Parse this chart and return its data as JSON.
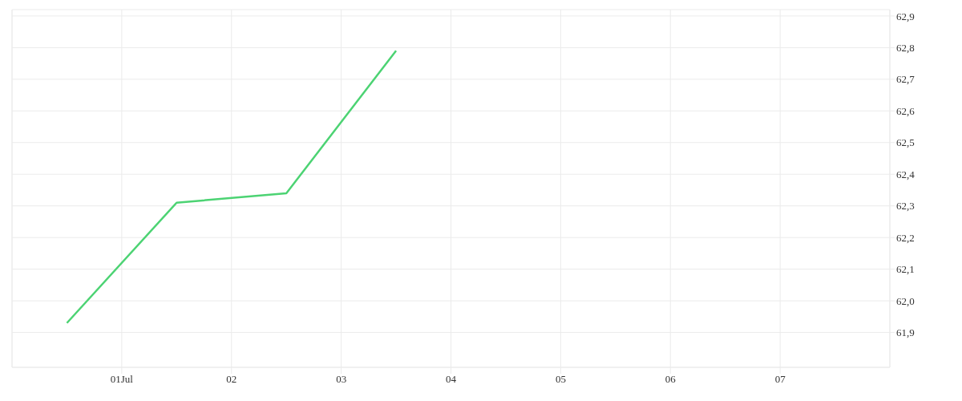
{
  "chart_data": {
    "type": "line",
    "x": [
      "--06-30T12:00",
      "--07-01T12:00",
      "--07-02T12:00",
      "--07-03T12:00"
    ],
    "series": [
      {
        "color": "#4cd373",
        "values": [
          61.93,
          62.31,
          62.34,
          62.79
        ]
      }
    ],
    "xlim": [
      "--06-30",
      "--07-08"
    ],
    "xticks": [
      {
        "value": "--07-01",
        "label": "01Jul"
      },
      {
        "value": "--07-02",
        "label": "02"
      },
      {
        "value": "--07-03",
        "label": "03"
      },
      {
        "value": "--07-04",
        "label": "04"
      },
      {
        "value": "--07-05",
        "label": "05"
      },
      {
        "value": "--07-06",
        "label": "06"
      },
      {
        "value": "--07-07",
        "label": "07"
      }
    ],
    "ylim": [
      61.79,
      62.92
    ],
    "yticks": [
      {
        "value": 61.9,
        "label": "61,9"
      },
      {
        "value": 62.0,
        "label": "62,0"
      },
      {
        "value": 62.1,
        "label": "62,1"
      },
      {
        "value": 62.2,
        "label": "62,2"
      },
      {
        "value": 62.3,
        "label": "62,3"
      },
      {
        "value": 62.4,
        "label": "62,4"
      },
      {
        "value": 62.5,
        "label": "62,5"
      },
      {
        "value": 62.6,
        "label": "62,6"
      },
      {
        "value": 62.7,
        "label": "62,7"
      },
      {
        "value": 62.8,
        "label": "62,8"
      },
      {
        "value": 62.9,
        "label": "62,9"
      }
    ],
    "grid": true,
    "legend": false,
    "marker": "none",
    "line_style": "solid"
  }
}
